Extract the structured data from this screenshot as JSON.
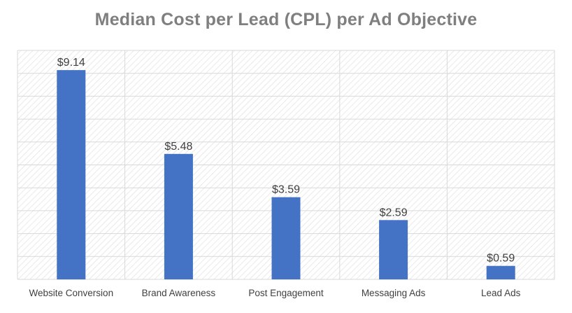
{
  "chart_data": {
    "type": "bar",
    "title": "Median Cost per Lead (CPL) per Ad Objective",
    "categories": [
      "Website Conversion",
      "Brand Awareness",
      "Post Engagement",
      "Messaging Ads",
      "Lead Ads"
    ],
    "values": [
      9.14,
      5.48,
      3.59,
      2.59,
      0.59
    ],
    "data_labels": [
      "$9.14",
      "$5.48",
      "$3.59",
      "$2.59",
      "$0.59"
    ],
    "xlabel": "",
    "ylabel": "",
    "ylim": [
      0,
      10
    ],
    "grid": true,
    "legend": "none",
    "colors": {
      "bar": "#4472C4",
      "grid": "#d9d9d9",
      "hatch": "#dcdcdc",
      "title": "#7f7f7f",
      "text": "#404040"
    }
  }
}
